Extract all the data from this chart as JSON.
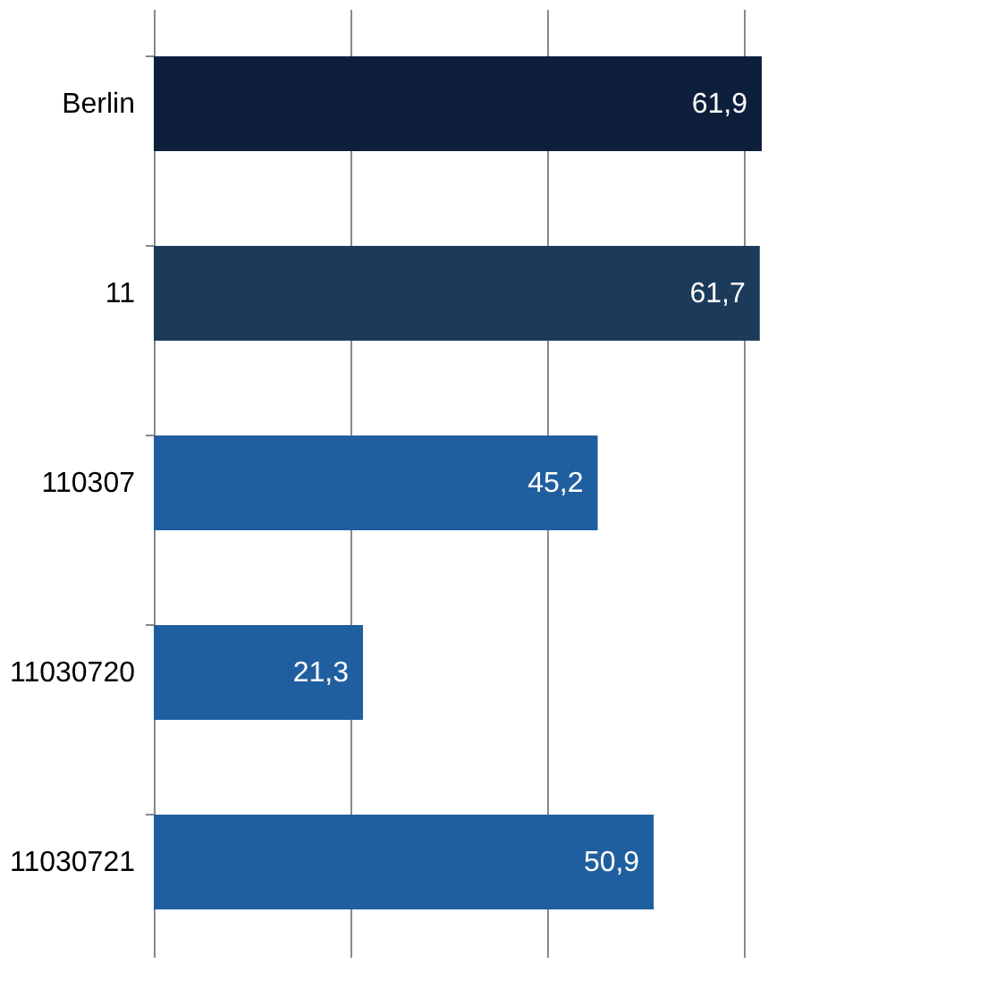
{
  "chart_data": {
    "type": "bar",
    "orientation": "horizontal",
    "categories": [
      "Berlin",
      "11",
      "110307",
      "11030720",
      "11030721"
    ],
    "values": [
      61.9,
      61.7,
      45.2,
      21.3,
      50.9
    ],
    "colors": [
      "#0e1f3b",
      "#1c3b5b",
      "#205f9f",
      "#205f9f",
      "#205f9f"
    ],
    "value_labels": [
      "61,9",
      "61,7",
      "45,2",
      "21,3",
      "50,9"
    ],
    "xticks": [
      {
        "value": 0,
        "label": null
      },
      {
        "value": 20,
        "label": null
      },
      {
        "value": 40,
        "label": null
      },
      {
        "value": 60,
        "label": null
      }
    ],
    "grid": "x",
    "tick_labels": "y"
  }
}
